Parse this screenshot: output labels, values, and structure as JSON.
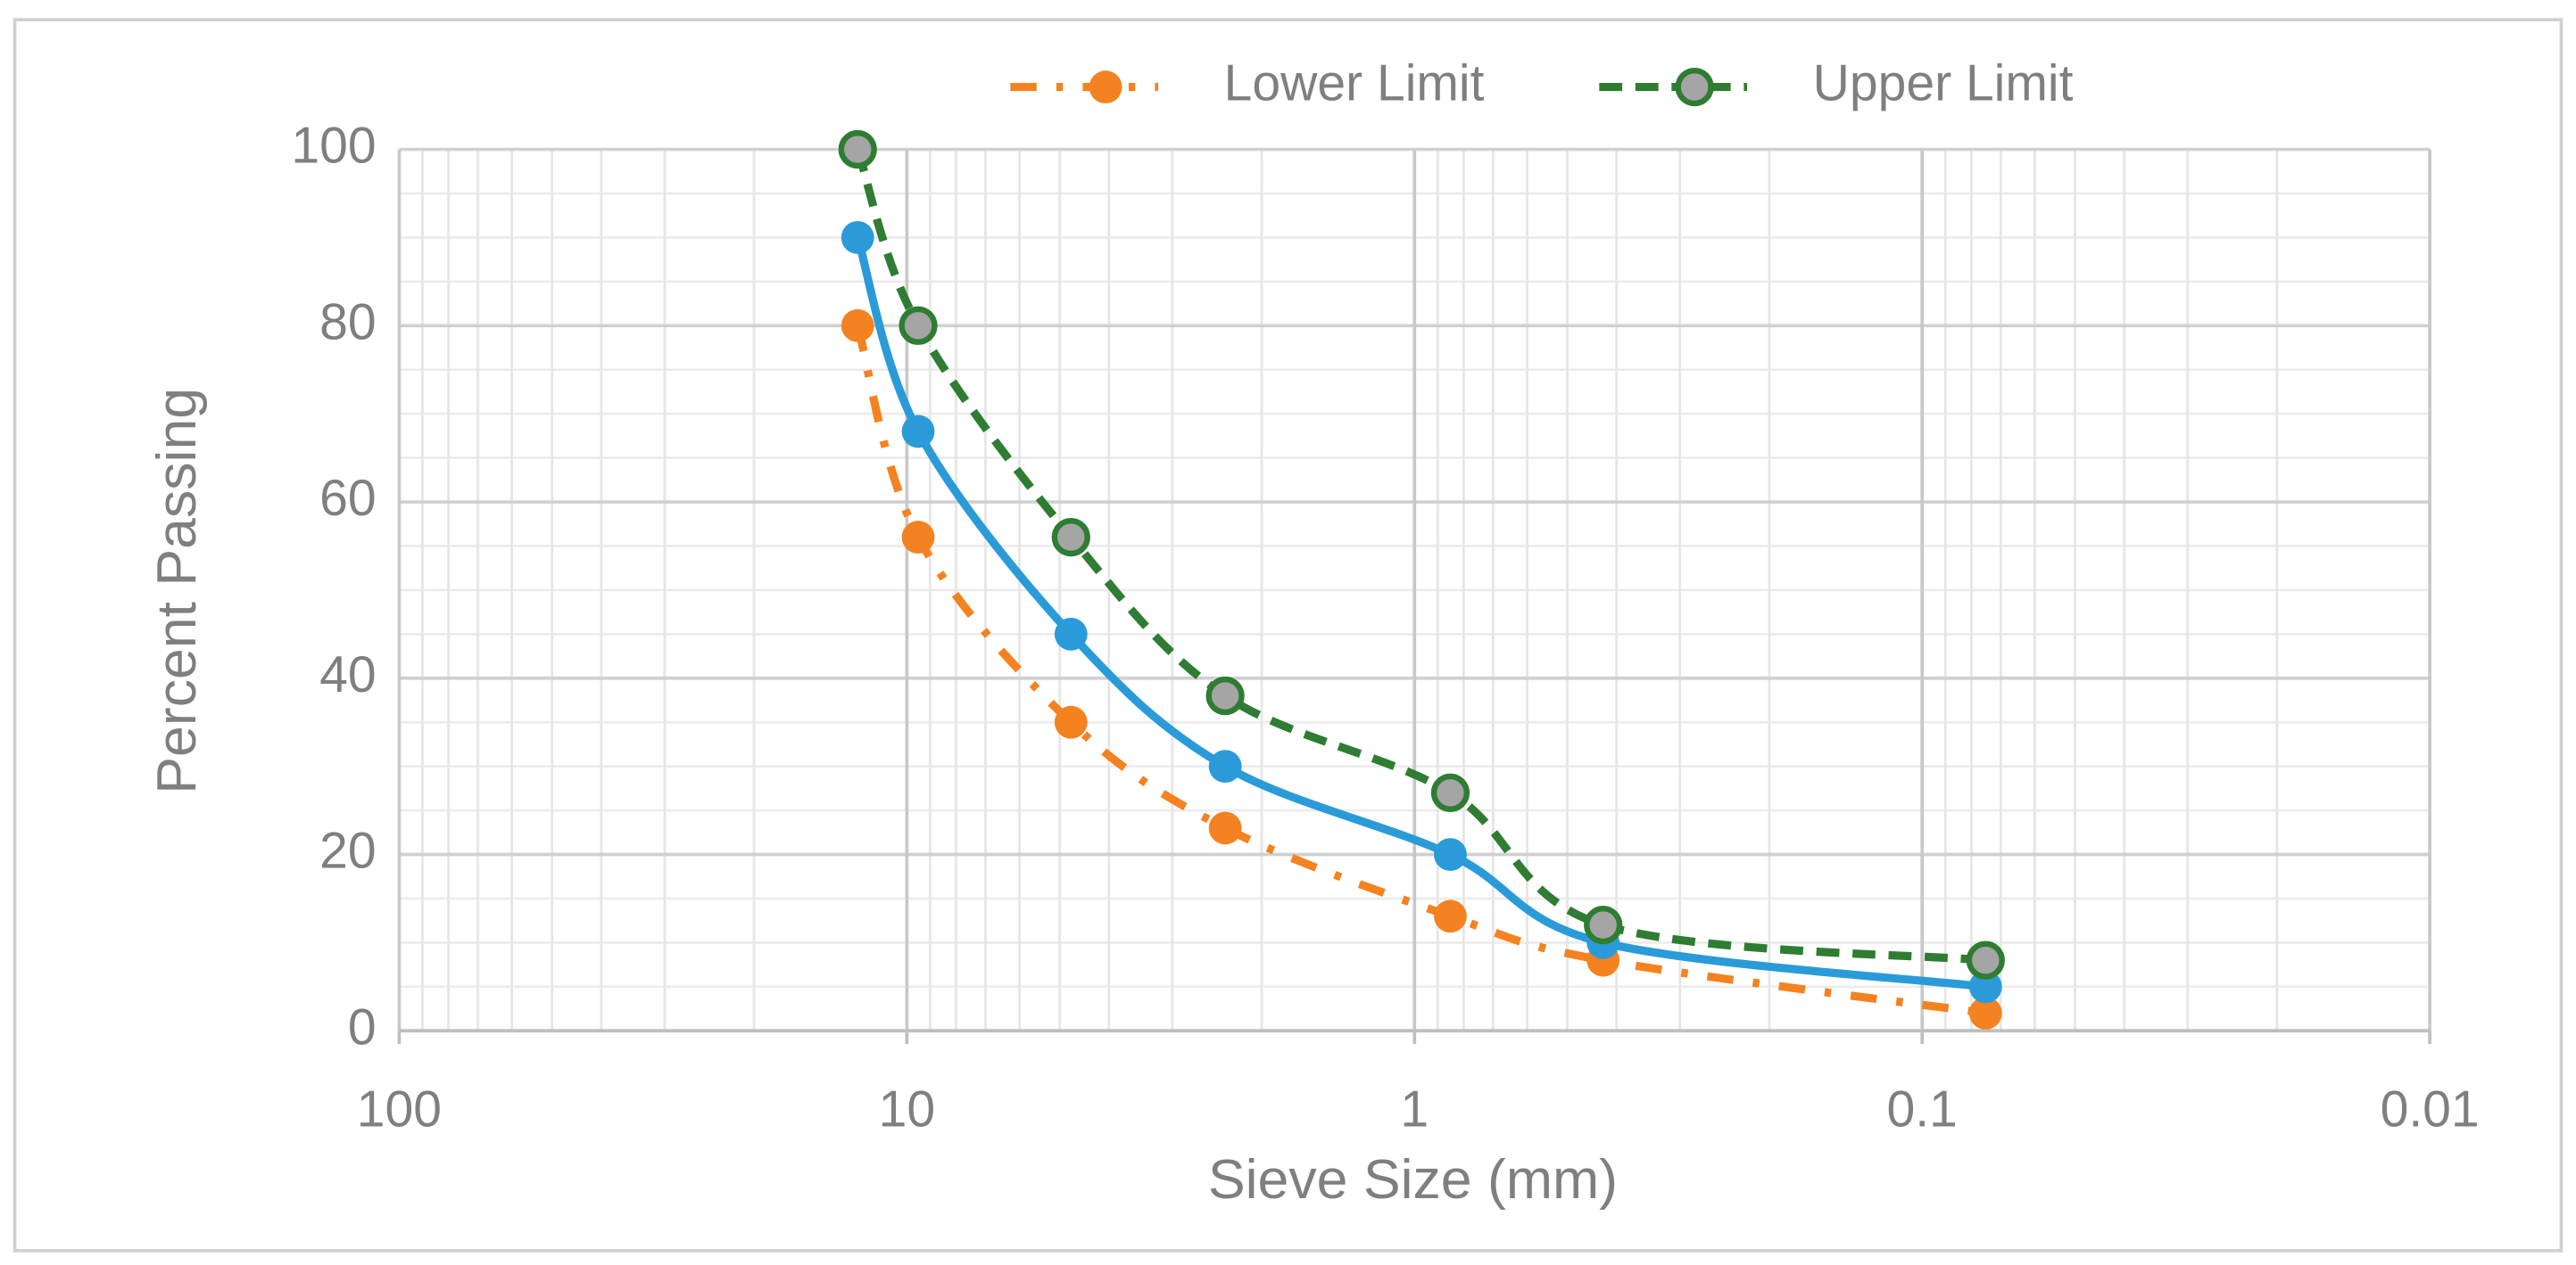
{
  "chart_data": {
    "type": "line",
    "x_label": "Sieve Size (mm)",
    "y_label": "Percent Passing",
    "x": [
      12.5,
      9.5,
      4.75,
      2.36,
      0.85,
      0.425,
      0.075
    ],
    "series": [
      {
        "name": "Lower Limit",
        "color": "#f58220",
        "dash": "dashdot",
        "marker_fill": "#f58220",
        "values": [
          80,
          56,
          35,
          23,
          13,
          8,
          2
        ]
      },
      {
        "color": "#2a9bd8",
        "dash": "solid",
        "marker_fill": "#2a9bd8",
        "values": [
          90,
          68,
          45,
          30,
          20,
          10,
          5
        ]
      },
      {
        "name": "Upper Limit",
        "color": "#2e7d32",
        "dash": "dash",
        "marker_fill": "#a5a5a5",
        "values": [
          100,
          80,
          56,
          38,
          27,
          12,
          8
        ]
      }
    ],
    "x_log": true,
    "xlim": [
      100,
      0.01
    ],
    "xticks": [
      100,
      10,
      1,
      0.1,
      0.01
    ],
    "ylim": [
      0,
      100
    ],
    "yticks": [
      0,
      20,
      40,
      60,
      80,
      100
    ],
    "grid": true,
    "minor_grid": true,
    "smooth": true,
    "legend": "top"
  }
}
